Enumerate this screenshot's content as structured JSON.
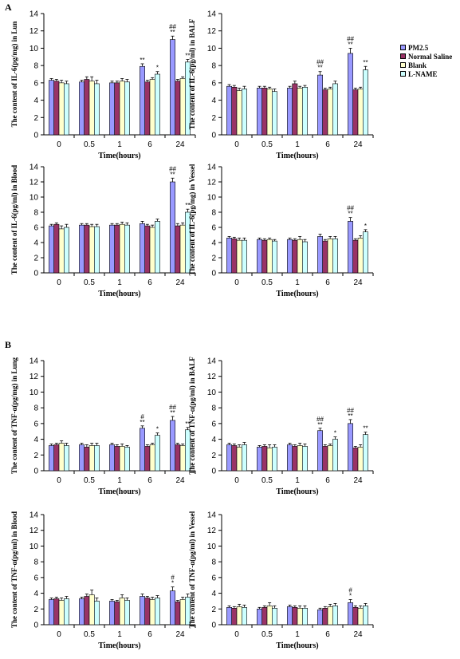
{
  "figure": {
    "label_a": "A",
    "label_b": "B",
    "legend": [
      {
        "name": "PM2.5",
        "color": "#9999ff"
      },
      {
        "name": "Normal Saline",
        "color": "#993366"
      },
      {
        "name": "Blank",
        "color": "#ffffcc"
      },
      {
        "name": "L-NAME",
        "color": "#ccffff"
      }
    ]
  },
  "chart_data": [
    {
      "type": "bar",
      "title": "",
      "categories": [
        "0",
        "0.5",
        "1",
        "6",
        "24"
      ],
      "xlabel": "Time(hours)",
      "ylabel": "The content of IL-6(pg/mg) in Lun",
      "ylim": [
        0,
        14
      ],
      "yticks": [
        0,
        2,
        4,
        6,
        8,
        10,
        12,
        14
      ],
      "series": [
        {
          "name": "PM2.5",
          "values": [
            6.3,
            6.1,
            6.0,
            7.9,
            11.0
          ],
          "errors": [
            0.2,
            0.2,
            0.2,
            0.3,
            0.4
          ]
        },
        {
          "name": "Normal Saline",
          "values": [
            6.2,
            6.4,
            6.0,
            6.1,
            6.2
          ],
          "errors": [
            0.2,
            0.3,
            0.2,
            0.2,
            0.2
          ]
        },
        {
          "name": "Blank",
          "values": [
            6.0,
            6.2,
            6.2,
            6.4,
            6.5
          ],
          "errors": [
            0.3,
            0.5,
            0.3,
            0.2,
            0.2
          ]
        },
        {
          "name": "L-NAME",
          "values": [
            5.9,
            5.9,
            6.1,
            7.0,
            8.4
          ],
          "errors": [
            0.3,
            0.4,
            0.3,
            0.3,
            0.3
          ]
        }
      ],
      "annotations": [
        {
          "category": "6",
          "series": "PM2.5",
          "text": "**"
        },
        {
          "category": "6",
          "series": "L-NAME",
          "text": "*"
        },
        {
          "category": "24",
          "series": "PM2.5",
          "text": "**"
        },
        {
          "category": "24",
          "series": "PM2.5",
          "text": "##"
        },
        {
          "category": "24",
          "series": "L-NAME",
          "text": "**"
        }
      ]
    },
    {
      "type": "bar",
      "title": "",
      "categories": [
        "0",
        "0.5",
        "1",
        "6",
        "24"
      ],
      "xlabel": "Time(hours)",
      "ylabel": "The content of IL-6(pg/ml) in BALF",
      "ylim": [
        0,
        14
      ],
      "yticks": [
        0,
        2,
        4,
        6,
        8,
        10,
        12,
        14
      ],
      "series": [
        {
          "name": "PM2.5",
          "values": [
            5.6,
            5.4,
            5.4,
            6.9,
            9.4
          ],
          "errors": [
            0.2,
            0.2,
            0.2,
            0.4,
            0.6
          ]
        },
        {
          "name": "Normal Saline",
          "values": [
            5.5,
            5.4,
            5.9,
            5.2,
            5.2
          ],
          "errors": [
            0.2,
            0.2,
            0.3,
            0.2,
            0.2
          ]
        },
        {
          "name": "Blank",
          "values": [
            5.1,
            5.3,
            5.4,
            5.3,
            5.3
          ],
          "errors": [
            0.3,
            0.2,
            0.2,
            0.2,
            0.2
          ]
        },
        {
          "name": "L-NAME",
          "values": [
            5.3,
            5.0,
            5.5,
            5.9,
            7.5
          ],
          "errors": [
            0.3,
            0.3,
            0.2,
            0.3,
            0.4
          ]
        }
      ],
      "annotations": [
        {
          "category": "6",
          "series": "PM2.5",
          "text": "**"
        },
        {
          "category": "6",
          "series": "PM2.5",
          "text": "##"
        },
        {
          "category": "24",
          "series": "PM2.5",
          "text": "**"
        },
        {
          "category": "24",
          "series": "PM2.5",
          "text": "##"
        },
        {
          "category": "24",
          "series": "L-NAME",
          "text": "**"
        }
      ]
    },
    {
      "type": "bar",
      "title": "",
      "categories": [
        "0",
        "0.5",
        "1",
        "6",
        "24"
      ],
      "xlabel": "Time(hours)",
      "ylabel": "The content of IL-6(pg/ml) in Blood",
      "ylim": [
        0,
        14
      ],
      "yticks": [
        0,
        2,
        4,
        6,
        8,
        10,
        12,
        14
      ],
      "series": [
        {
          "name": "PM2.5",
          "values": [
            6.2,
            6.3,
            6.3,
            6.5,
            12.0
          ],
          "errors": [
            0.2,
            0.2,
            0.2,
            0.3,
            0.5
          ]
        },
        {
          "name": "Normal Saline",
          "values": [
            6.4,
            6.3,
            6.3,
            6.2,
            6.2
          ],
          "errors": [
            0.2,
            0.2,
            0.2,
            0.2,
            0.3
          ]
        },
        {
          "name": "Blank",
          "values": [
            5.8,
            6.1,
            6.4,
            6.0,
            6.3
          ],
          "errors": [
            0.4,
            0.3,
            0.3,
            0.3,
            0.3
          ]
        },
        {
          "name": "L-NAME",
          "values": [
            6.0,
            6.1,
            6.3,
            6.8,
            8.0
          ],
          "errors": [
            0.4,
            0.3,
            0.3,
            0.3,
            0.4
          ]
        }
      ],
      "annotations": [
        {
          "category": "24",
          "series": "PM2.5",
          "text": "**"
        },
        {
          "category": "24",
          "series": "PM2.5",
          "text": "##"
        },
        {
          "category": "24",
          "series": "L-NAME",
          "text": "**"
        }
      ]
    },
    {
      "type": "bar",
      "title": "",
      "categories": [
        "0",
        "0.5",
        "1",
        "6",
        "24"
      ],
      "xlabel": "Time(hours)",
      "ylabel": "The content of IL-6(pg/mg) in Vessel",
      "ylim": [
        0,
        14
      ],
      "yticks": [
        0,
        2,
        4,
        6,
        8,
        10,
        12,
        14
      ],
      "series": [
        {
          "name": "PM2.5",
          "values": [
            4.6,
            4.4,
            4.4,
            4.8,
            6.8
          ],
          "errors": [
            0.2,
            0.2,
            0.2,
            0.3,
            0.5
          ]
        },
        {
          "name": "Normal Saline",
          "values": [
            4.5,
            4.3,
            4.3,
            4.2,
            4.3
          ],
          "errors": [
            0.2,
            0.2,
            0.2,
            0.2,
            0.2
          ]
        },
        {
          "name": "Blank",
          "values": [
            4.3,
            4.4,
            4.4,
            4.5,
            4.6
          ],
          "errors": [
            0.3,
            0.2,
            0.4,
            0.3,
            0.3
          ]
        },
        {
          "name": "L-NAME",
          "values": [
            4.3,
            4.2,
            4.1,
            4.5,
            5.4
          ],
          "errors": [
            0.3,
            0.2,
            0.3,
            0.3,
            0.3
          ]
        }
      ],
      "annotations": [
        {
          "category": "24",
          "series": "PM2.5",
          "text": "**"
        },
        {
          "category": "24",
          "series": "PM2.5",
          "text": "##"
        },
        {
          "category": "24",
          "series": "L-NAME",
          "text": "*"
        }
      ]
    },
    {
      "type": "bar",
      "title": "",
      "categories": [
        "0",
        "0.5",
        "1",
        "6",
        "24"
      ],
      "xlabel": "Time(hours)",
      "ylabel": "The content of TNF-α(pg/mg) in Lung",
      "ylim": [
        0,
        14
      ],
      "yticks": [
        0,
        2,
        4,
        6,
        8,
        10,
        12,
        14
      ],
      "series": [
        {
          "name": "PM2.5",
          "values": [
            3.2,
            3.3,
            3.3,
            5.4,
            6.4
          ],
          "errors": [
            0.2,
            0.2,
            0.2,
            0.3,
            0.5
          ]
        },
        {
          "name": "Normal Saline",
          "values": [
            3.3,
            3.0,
            3.1,
            3.1,
            3.3
          ],
          "errors": [
            0.2,
            0.3,
            0.2,
            0.2,
            0.2
          ]
        },
        {
          "name": "Blank",
          "values": [
            3.5,
            3.2,
            3.1,
            3.3,
            3.2
          ],
          "errors": [
            0.3,
            0.3,
            0.3,
            0.2,
            0.2
          ]
        },
        {
          "name": "L-NAME",
          "values": [
            3.2,
            3.2,
            3.0,
            4.5,
            5.2
          ],
          "errors": [
            0.3,
            0.3,
            0.2,
            0.3,
            0.3
          ]
        }
      ],
      "annotations": [
        {
          "category": "6",
          "series": "PM2.5",
          "text": "**"
        },
        {
          "category": "6",
          "series": "PM2.5",
          "text": "#"
        },
        {
          "category": "6",
          "series": "L-NAME",
          "text": "*"
        },
        {
          "category": "24",
          "series": "PM2.5",
          "text": "**"
        },
        {
          "category": "24",
          "series": "PM2.5",
          "text": "##"
        },
        {
          "category": "24",
          "series": "L-NAME",
          "text": "**"
        }
      ]
    },
    {
      "type": "bar",
      "title": "",
      "categories": [
        "0",
        "0.5",
        "1",
        "6",
        "24"
      ],
      "xlabel": "Time(hours)",
      "ylabel": "The content of TNF-α(pg/ml) in BALF",
      "ylim": [
        0,
        14
      ],
      "yticks": [
        0,
        2,
        4,
        6,
        8,
        10,
        12,
        14
      ],
      "series": [
        {
          "name": "PM2.5",
          "values": [
            3.3,
            3.0,
            3.3,
            5.1,
            6.0
          ],
          "errors": [
            0.2,
            0.2,
            0.2,
            0.3,
            0.5
          ]
        },
        {
          "name": "Normal Saline",
          "values": [
            3.2,
            3.1,
            3.1,
            3.1,
            2.9
          ],
          "errors": [
            0.2,
            0.2,
            0.2,
            0.2,
            0.2
          ]
        },
        {
          "name": "Blank",
          "values": [
            3.0,
            2.9,
            3.2,
            3.2,
            3.0
          ],
          "errors": [
            0.3,
            0.4,
            0.3,
            0.2,
            0.3
          ]
        },
        {
          "name": "L-NAME",
          "values": [
            3.3,
            3.0,
            3.1,
            4.0,
            4.6
          ],
          "errors": [
            0.3,
            0.3,
            0.3,
            0.3,
            0.3
          ]
        }
      ],
      "annotations": [
        {
          "category": "6",
          "series": "PM2.5",
          "text": "**"
        },
        {
          "category": "6",
          "series": "PM2.5",
          "text": "##"
        },
        {
          "category": "6",
          "series": "L-NAME",
          "text": "*"
        },
        {
          "category": "24",
          "series": "PM2.5",
          "text": "**"
        },
        {
          "category": "24",
          "series": "PM2.5",
          "text": "##"
        },
        {
          "category": "24",
          "series": "L-NAME",
          "text": "**"
        }
      ]
    },
    {
      "type": "bar",
      "title": "",
      "categories": [
        "0",
        "0.5",
        "1",
        "6",
        "24"
      ],
      "xlabel": "Time(hours)",
      "ylabel": "The content of TNF-α(pg/ml) in Blood",
      "ylim": [
        0,
        14
      ],
      "yticks": [
        0,
        2,
        4,
        6,
        8,
        10,
        12,
        14
      ],
      "series": [
        {
          "name": "PM2.5",
          "values": [
            3.2,
            3.3,
            3.0,
            3.6,
            4.3
          ],
          "errors": [
            0.2,
            0.2,
            0.2,
            0.3,
            0.5
          ]
        },
        {
          "name": "Normal Saline",
          "values": [
            3.3,
            3.6,
            2.9,
            3.4,
            2.9
          ],
          "errors": [
            0.2,
            0.3,
            0.2,
            0.2,
            0.2
          ]
        },
        {
          "name": "Blank",
          "values": [
            3.1,
            3.8,
            3.4,
            3.2,
            3.2
          ],
          "errors": [
            0.3,
            0.6,
            0.4,
            0.3,
            0.3
          ]
        },
        {
          "name": "L-NAME",
          "values": [
            3.3,
            3.0,
            3.1,
            3.4,
            3.5
          ],
          "errors": [
            0.3,
            0.4,
            0.3,
            0.3,
            0.4
          ]
        }
      ],
      "annotations": [
        {
          "category": "24",
          "series": "PM2.5",
          "text": "*"
        },
        {
          "category": "24",
          "series": "PM2.5",
          "text": "#"
        }
      ]
    },
    {
      "type": "bar",
      "title": "",
      "categories": [
        "0",
        "0.5",
        "1",
        "6",
        "24"
      ],
      "xlabel": "Time(hours)",
      "ylabel": "The content of TNF-α(pg/ml) in Vessel",
      "ylim": [
        0,
        14
      ],
      "yticks": [
        0,
        2,
        4,
        6,
        8,
        10,
        12,
        14
      ],
      "series": [
        {
          "name": "PM2.5",
          "values": [
            2.2,
            2.0,
            2.3,
            1.9,
            2.8
          ],
          "errors": [
            0.2,
            0.2,
            0.2,
            0.2,
            0.4
          ]
        },
        {
          "name": "Normal Saline",
          "values": [
            2.1,
            2.2,
            2.2,
            2.1,
            2.2
          ],
          "errors": [
            0.2,
            0.2,
            0.2,
            0.2,
            0.2
          ]
        },
        {
          "name": "Blank",
          "values": [
            2.3,
            2.4,
            2.1,
            2.3,
            2.1
          ],
          "errors": [
            0.3,
            0.4,
            0.3,
            0.3,
            0.3
          ]
        },
        {
          "name": "L-NAME",
          "values": [
            2.2,
            2.1,
            2.1,
            2.4,
            2.4
          ],
          "errors": [
            0.3,
            0.3,
            0.3,
            0.3,
            0.3
          ]
        }
      ],
      "annotations": [
        {
          "category": "24",
          "series": "PM2.5",
          "text": "*"
        },
        {
          "category": "24",
          "series": "PM2.5",
          "text": "#"
        }
      ]
    }
  ]
}
